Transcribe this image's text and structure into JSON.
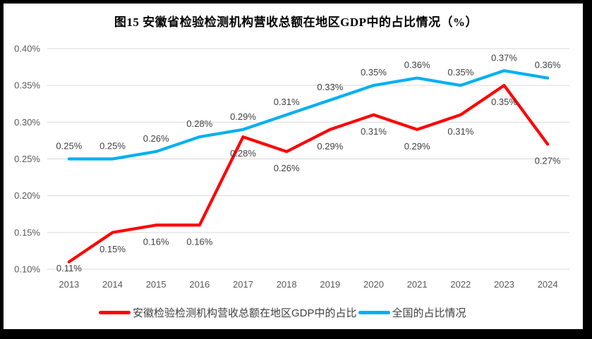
{
  "title": "图15 安徽省检验检测机构营收总额在地区GDP中的占比情况（%）",
  "chart_data": {
    "type": "line",
    "categories": [
      "2013",
      "2014",
      "2015",
      "2016",
      "2017",
      "2018",
      "2019",
      "2020",
      "2021",
      "2022",
      "2023",
      "2024"
    ],
    "series": [
      {
        "name": "安徽检验检测机构营收总额在地区GDP中的占比",
        "color": "#FF0000",
        "values": [
          0.11,
          0.15,
          0.16,
          0.16,
          0.28,
          0.26,
          0.29,
          0.31,
          0.29,
          0.31,
          0.35,
          0.27
        ],
        "labels": [
          "0.11%",
          "0.15%",
          "0.16%",
          "0.16%",
          "0.28%",
          "0.26%",
          "0.29%",
          "0.31%",
          "0.29%",
          "0.31%",
          "0.35%",
          "0.27%"
        ],
        "label_position": "below"
      },
      {
        "name": "全国的占比情况",
        "color": "#00B0F0",
        "values": [
          0.25,
          0.25,
          0.26,
          0.28,
          0.29,
          0.31,
          0.33,
          0.35,
          0.36,
          0.35,
          0.37,
          0.36
        ],
        "labels": [
          "0.25%",
          "0.25%",
          "0.26%",
          "0.28%",
          "0.29%",
          "0.31%",
          "0.33%",
          "0.35%",
          "0.36%",
          "0.35%",
          "0.37%",
          "0.36%"
        ],
        "label_position": "above"
      }
    ],
    "title": "图15 安徽省检验检测机构营收总额在地区GDP中的占比情况（%）",
    "xlabel": "",
    "ylabel": "",
    "y_ticks": [
      "0.40%",
      "0.35%",
      "0.30%",
      "0.25%",
      "0.20%",
      "0.15%",
      "0.10%"
    ],
    "ylim": [
      0.1,
      0.4
    ],
    "grid": "horizontal",
    "legend_position": "bottom",
    "gridline_color": "#D9D9D9",
    "axis_color": "#595959",
    "label_color": "#404040"
  },
  "legend": {
    "items": [
      {
        "label": "安徽检验检测机构营收总额在地区GDP中的占比",
        "color": "#FF0000"
      },
      {
        "label": "全国的占比情况",
        "color": "#00B0F0"
      }
    ]
  }
}
